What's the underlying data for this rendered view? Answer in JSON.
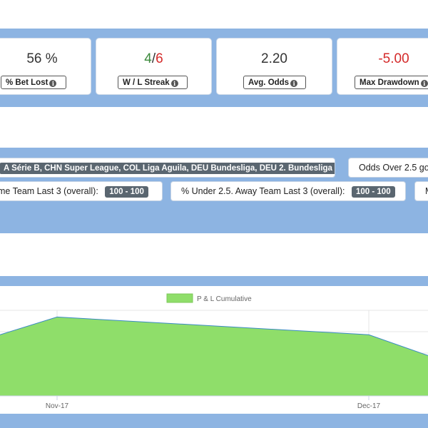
{
  "stats": [
    {
      "value": "56 %",
      "label": "% Bet Lost",
      "icon": "info-icon"
    },
    {
      "value_win": "4",
      "value_sep": "/",
      "value_loss": "6",
      "label": "W / L Streak",
      "icon": "info-icon"
    },
    {
      "value": "2.20",
      "label": "Avg. Odds",
      "icon": "info-icon"
    },
    {
      "value": "-5.00",
      "label": "Max Drawdown",
      "icon": "info-icon"
    }
  ],
  "colors": {
    "band": "#8db4e2",
    "win": "#3c8a3c",
    "loss": "#d42a2a",
    "area_fill": "#8fde6a",
    "area_line": "#3b8ac4",
    "pill": "#5a6670"
  },
  "filters": {
    "leagues": "A Série B, CHN Super League, COL Liga Aguila, DEU Bundesliga, DEU 2. Bundesliga ...",
    "market": "Odds Over 2.5 go",
    "home_label": "me Team Last 3 (overall):",
    "home_value": "100 - 100",
    "away_label": "% Under 2.5. Away Team Last 3 (overall):",
    "away_value": "100 - 100",
    "extra": "M"
  },
  "chart_data": {
    "type": "area",
    "legend": "P & L Cumulative",
    "legend_position": "top-center",
    "grid": true,
    "x_ticks": [
      "Nov-17",
      "Dec-17"
    ],
    "points": [
      {
        "x": "Nov-17 (pre)",
        "y": 0.72
      },
      {
        "x": "Nov-17",
        "y": 0.95
      },
      {
        "x": "Dec-17",
        "y": 0.72
      },
      {
        "x": "Dec-17 (post)",
        "y": 0.45
      }
    ]
  }
}
